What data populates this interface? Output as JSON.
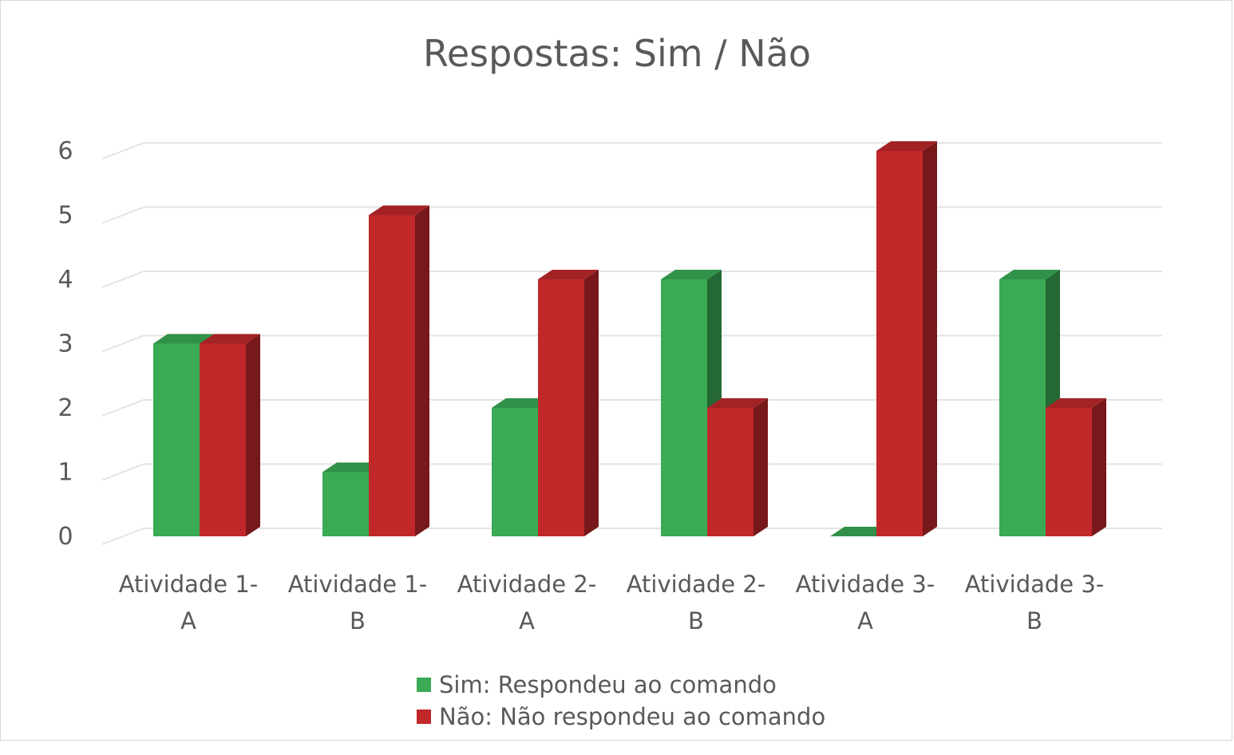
{
  "chart_data": {
    "type": "bar",
    "title": "Respostas: Sim / Não",
    "categories": [
      [
        "Atividade 1-",
        "A"
      ],
      [
        "Atividade 1-",
        "B"
      ],
      [
        "Atividade 2-",
        "A"
      ],
      [
        "Atividade 2-",
        "B"
      ],
      [
        "Atividade 3-",
        "A"
      ],
      [
        "Atividade 3-",
        "B"
      ]
    ],
    "series": [
      {
        "name": "Sim: Respondeu ao comando",
        "values": [
          3,
          1,
          2,
          4,
          0,
          4
        ],
        "color": "#3aaa55"
      },
      {
        "name": "Não: Não respondeu ao comando",
        "values": [
          3,
          5,
          4,
          2,
          6,
          2
        ],
        "color": "#c0282a"
      }
    ],
    "ylim": [
      0,
      6
    ],
    "yticks": [
      "0",
      "1",
      "2",
      "3",
      "4",
      "5",
      "6"
    ],
    "grid": true,
    "legend_position": "bottom",
    "style": "3d-clustered-column"
  }
}
